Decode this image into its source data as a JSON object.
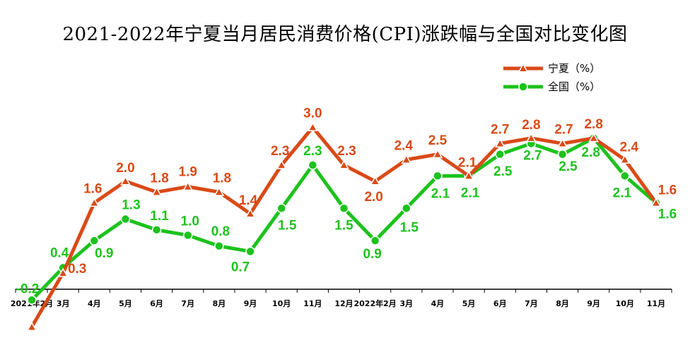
{
  "title": "2021-2022年宁夏当月居民消费价格(CPI)涨跌幅与全国对比变化图",
  "colors": {
    "ningxia": "#d94a17",
    "national": "#1dc21d",
    "axis": "#000000"
  },
  "legend": [
    {
      "key": "ningxia",
      "label": "宁夏（%）",
      "marker": "triangle"
    },
    {
      "key": "national",
      "label": "全国（%）",
      "marker": "circle"
    }
  ],
  "chart_data": {
    "type": "line",
    "title": "2021-2022年宁夏当月居民消费价格(CPI)涨跌幅与全国对比变化图",
    "xlabel": "",
    "ylabel": "",
    "legend_position": "top-right",
    "grid": false,
    "categories": [
      "2021年2月",
      "3月",
      "4月",
      "5月",
      "6月",
      "7月",
      "8月",
      "9月",
      "10月",
      "11月",
      "12月",
      "2022年2月",
      "3月",
      "4月",
      "5月",
      "6月",
      "7月",
      "8月",
      "9月",
      "10月",
      "11月"
    ],
    "series": [
      {
        "name": "宁夏（%）",
        "key": "ningxia",
        "marker": "triangle",
        "values": [
          -0.7,
          0.3,
          1.6,
          2.0,
          1.8,
          1.9,
          1.8,
          1.4,
          2.3,
          3.0,
          2.3,
          2.0,
          2.4,
          2.5,
          2.1,
          2.7,
          2.8,
          2.7,
          2.8,
          2.4,
          1.6
        ]
      },
      {
        "name": "全国（%）",
        "key": "national",
        "marker": "circle",
        "values": [
          -0.2,
          0.4,
          0.9,
          1.3,
          1.1,
          1.0,
          0.8,
          0.7,
          1.5,
          2.3,
          1.5,
          0.9,
          1.5,
          2.1,
          2.1,
          2.5,
          2.7,
          2.5,
          2.8,
          2.1,
          1.6
        ]
      }
    ]
  }
}
